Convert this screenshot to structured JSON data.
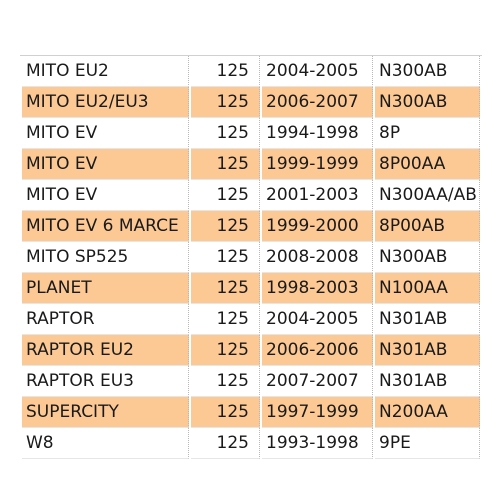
{
  "table": {
    "alt_row_color": "#fcc894",
    "rows": [
      {
        "model": "MITO EU2",
        "cc": "125",
        "years": "2004-2005",
        "code": "N300AB"
      },
      {
        "model": "MITO EU2/EU3",
        "cc": "125",
        "years": "2006-2007",
        "code": "N300AB"
      },
      {
        "model": "MITO EV",
        "cc": "125",
        "years": "1994-1998",
        "code": "8P"
      },
      {
        "model": "MITO EV",
        "cc": "125",
        "years": "1999-1999",
        "code": "8P00AA"
      },
      {
        "model": "MITO EV",
        "cc": "125",
        "years": "2001-2003",
        "code": "N300AA/AB"
      },
      {
        "model": "MITO EV 6 MARCE",
        "cc": "125",
        "years": "1999-2000",
        "code": "8P00AB"
      },
      {
        "model": "MITO SP525",
        "cc": "125",
        "years": "2008-2008",
        "code": "N300AB"
      },
      {
        "model": "PLANET",
        "cc": "125",
        "years": "1998-2003",
        "code": "N100AA"
      },
      {
        "model": "RAPTOR",
        "cc": "125",
        "years": "2004-2005",
        "code": "N301AB"
      },
      {
        "model": "RAPTOR EU2",
        "cc": "125",
        "years": "2006-2006",
        "code": "N301AB"
      },
      {
        "model": "RAPTOR EU3",
        "cc": "125",
        "years": "2007-2007",
        "code": "N301AB"
      },
      {
        "model": "SUPERCITY",
        "cc": "125",
        "years": "1997-1999",
        "code": "N200AA"
      },
      {
        "model": "W8",
        "cc": "125",
        "years": "1993-1998",
        "code": "9PE"
      }
    ]
  }
}
